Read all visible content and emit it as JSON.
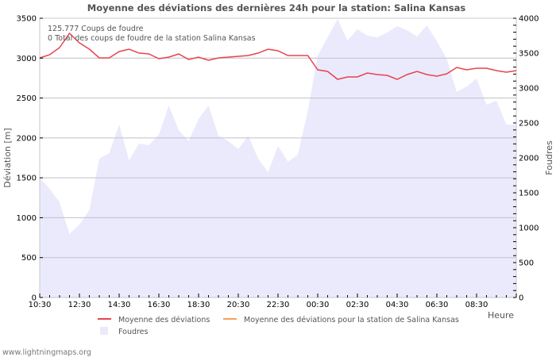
{
  "title": "Moyenne des déviations des dernières 24h pour la station: Salina  Kansas",
  "info": {
    "line1": "125.777  Coups de foudre",
    "line2": "0 Total des coups de foudre de la station Salina  Kansas"
  },
  "axes": {
    "left_title": "Déviation  [m]",
    "right_title": "Foudres",
    "x_title": "Heure",
    "left_ticks": [
      "0",
      "500",
      "1000",
      "1500",
      "2000",
      "2500",
      "3000",
      "3500"
    ],
    "right_ticks": [
      "0",
      "500",
      "1000",
      "1500",
      "2000",
      "2500",
      "3000",
      "3500",
      "4000"
    ],
    "x_ticks": [
      "10:30",
      "12:30",
      "14:30",
      "16:30",
      "18:30",
      "20:30",
      "22:30",
      "00:30",
      "02:30",
      "04:30",
      "06:30",
      "08:30"
    ]
  },
  "legend": {
    "item1": "Moyenne des déviations",
    "item2": "Moyenne des déviations pour la station de Salina  Kansas",
    "item3": "Foudres"
  },
  "footer": "www.lightningmaps.org",
  "colors": {
    "deviation_line": "#e8434f",
    "station_line": "#f5a05a",
    "lightning_area": "#eaeafc",
    "grid": "#c0c0c8"
  },
  "chart_data": {
    "type": "line",
    "title": "Moyenne des déviations des dernières 24h pour la station: Salina  Kansas",
    "xlabel": "Heure",
    "ylabel": "Déviation  [m]",
    "y2label": "Foudres",
    "ylim": [
      0,
      3500
    ],
    "y2lim": [
      0,
      4000
    ],
    "grid": true,
    "legend_position": "bottom",
    "x_tick_labels": [
      "10:30",
      "12:30",
      "14:30",
      "16:30",
      "18:30",
      "20:30",
      "22:30",
      "00:30",
      "02:30",
      "04:30",
      "06:30",
      "08:30"
    ],
    "x": [
      "10:30",
      "11:00",
      "11:30",
      "12:00",
      "12:30",
      "13:00",
      "13:30",
      "14:00",
      "14:30",
      "15:00",
      "15:30",
      "16:00",
      "16:30",
      "17:00",
      "17:30",
      "18:00",
      "18:30",
      "19:00",
      "19:30",
      "20:00",
      "20:30",
      "21:00",
      "21:30",
      "22:00",
      "22:30",
      "23:00",
      "23:30",
      "00:00",
      "00:30",
      "01:00",
      "01:30",
      "02:00",
      "02:30",
      "03:00",
      "03:30",
      "04:00",
      "04:30",
      "05:00",
      "05:30",
      "06:00",
      "06:30",
      "07:00",
      "07:30",
      "08:00",
      "08:30",
      "09:00",
      "09:30",
      "10:00",
      "10:30"
    ],
    "series": [
      {
        "name": "Moyenne des déviations",
        "axis": "left",
        "type": "line",
        "values": [
          3003,
          3043,
          3132,
          3311,
          3192,
          3112,
          3003,
          3003,
          3082,
          3112,
          3063,
          3053,
          2993,
          3013,
          3053,
          2983,
          3013,
          2973,
          3003,
          3013,
          3023,
          3033,
          3063,
          3112,
          3092,
          3033,
          3033,
          3033,
          2854,
          2834,
          2734,
          2764,
          2764,
          2814,
          2794,
          2784,
          2734,
          2794,
          2834,
          2794,
          2774,
          2804,
          2884,
          2854,
          2874,
          2874,
          2844,
          2824,
          2844
        ]
      },
      {
        "name": "Moyenne des déviations pour la station de Salina  Kansas",
        "axis": "left",
        "type": "line",
        "values": []
      },
      {
        "name": "Foudres",
        "axis": "right",
        "type": "area",
        "values": [
          1716,
          1557,
          1364,
          909,
          1045,
          1250,
          1989,
          2068,
          2477,
          1966,
          2205,
          2182,
          2330,
          2750,
          2398,
          2239,
          2557,
          2750,
          2318,
          2239,
          2125,
          2318,
          1989,
          1795,
          2170,
          1943,
          2045,
          2670,
          3466,
          3727,
          3989,
          3682,
          3841,
          3750,
          3727,
          3795,
          3886,
          3830,
          3739,
          3898,
          3670,
          3420,
          2943,
          3023,
          3136,
          2761,
          2818,
          2477,
          2477
        ]
      }
    ]
  }
}
